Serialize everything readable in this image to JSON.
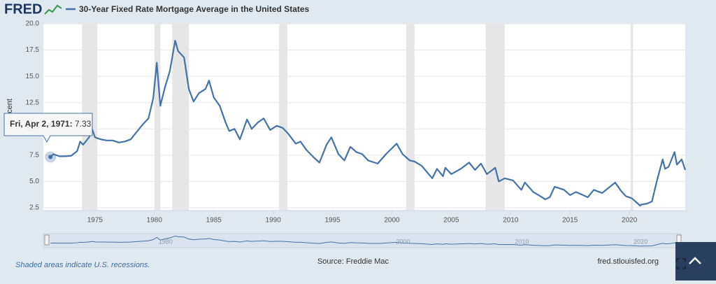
{
  "logo": "FRED",
  "chart_data": {
    "type": "line",
    "ylabel": "Percent",
    "x": [
      1971.25,
      1971.5,
      1972,
      1972.5,
      1973,
      1973.5,
      1973.75,
      1974,
      1974.5,
      1974.75,
      1975,
      1975.5,
      1976,
      1976.5,
      1977,
      1977.5,
      1978,
      1978.5,
      1979,
      1979.5,
      1979.9,
      1980.2,
      1980.5,
      1980.9,
      1981.3,
      1981.75,
      1982,
      1982.5,
      1982.9,
      1983.3,
      1983.75,
      1984.3,
      1984.6,
      1985,
      1985.5,
      1986,
      1986.3,
      1986.75,
      1987.2,
      1987.8,
      1988.2,
      1988.7,
      1989.2,
      1989.75,
      1990.3,
      1990.8,
      1991.3,
      1991.9,
      1992.3,
      1992.8,
      1993.5,
      1993.9,
      1994.5,
      1994.9,
      1995.5,
      1996,
      1996.5,
      1997,
      1997.5,
      1998,
      1998.8,
      1999.5,
      2000.4,
      2000.9,
      2001.5,
      2001.9,
      2002.5,
      2003.4,
      2003.8,
      2004.3,
      2004.5,
      2005,
      2005.8,
      2006.5,
      2007,
      2007.5,
      2008,
      2008.7,
      2009,
      2009.5,
      2010.2,
      2010.9,
      2011.2,
      2011.9,
      2012.5,
      2012.9,
      2013.3,
      2013.7,
      2014.5,
      2015,
      2015.5,
      2016.5,
      2017,
      2017.7,
      2018.8,
      2019.3,
      2019.7,
      2020.2,
      2020.9,
      2021,
      2021.5,
      2021.9,
      2022.3,
      2022.8,
      2023,
      2023.3,
      2023.8,
      2024,
      2024.4,
      2024.7
    ],
    "series": [
      {
        "name": "30-Year Fixed Rate Mortgage Average in the United States",
        "color": "#4572a7",
        "values": [
          7.33,
          7.6,
          7.4,
          7.4,
          7.45,
          7.9,
          8.8,
          8.5,
          9.2,
          10.0,
          9.2,
          9.0,
          8.9,
          8.9,
          8.7,
          8.8,
          9.0,
          9.7,
          10.4,
          11.0,
          12.9,
          16.3,
          12.2,
          14.0,
          15.5,
          18.4,
          17.4,
          16.8,
          13.8,
          12.6,
          13.4,
          13.8,
          14.6,
          13.0,
          12.2,
          10.6,
          9.8,
          10.0,
          9.0,
          10.9,
          10.0,
          10.6,
          11.0,
          9.9,
          10.3,
          10.1,
          9.5,
          8.6,
          8.8,
          8.0,
          7.2,
          6.8,
          8.5,
          9.2,
          7.6,
          7.0,
          8.3,
          7.8,
          7.6,
          7.0,
          6.7,
          7.6,
          8.6,
          7.6,
          7.0,
          6.9,
          6.5,
          5.3,
          6.2,
          5.5,
          6.3,
          5.7,
          6.2,
          6.8,
          6.1,
          6.7,
          5.7,
          6.3,
          5.0,
          5.3,
          5.1,
          4.2,
          4.9,
          4.0,
          3.6,
          3.3,
          3.5,
          4.5,
          4.2,
          3.7,
          4.0,
          3.5,
          4.2,
          3.9,
          4.9,
          4.1,
          3.6,
          3.4,
          2.7,
          2.8,
          2.9,
          3.1,
          5.0,
          7.1,
          6.2,
          6.4,
          7.8,
          6.6,
          7.1,
          6.1
        ]
      }
    ],
    "recessions": [
      [
        1973.9,
        1975.2
      ],
      [
        1980.0,
        1980.5
      ],
      [
        1981.5,
        1982.9
      ],
      [
        1990.5,
        1991.2
      ],
      [
        2001.2,
        2001.9
      ],
      [
        2007.9,
        2009.5
      ],
      [
        2020.1,
        2020.3
      ]
    ],
    "xlim": [
      1970.65,
      2024.7
    ],
    "xticks": [
      1975,
      1980,
      1985,
      1990,
      1995,
      2000,
      2005,
      2010,
      2015,
      2020
    ],
    "ylim": [
      2.5,
      20
    ],
    "yticks": [
      2.5,
      {
        "value": 5,
        "label": "5.0"
      },
      7.5,
      {
        "value": 10,
        "label": "10.0"
      },
      12.5,
      {
        "value": 15,
        "label": "15.0"
      },
      17.5,
      {
        "value": 20,
        "label": "20.0"
      }
    ],
    "grid": true,
    "tooltip": {
      "date": "Fri, Apr 2, 1971:"
    },
    "navigator_ticks": [
      1980,
      2000,
      2010,
      2020
    ],
    "note": "Shaded areas indicate U.S. recessions.",
    "source": "Source: Freddie Mac",
    "site": "fred.stlouisfed.org"
  }
}
